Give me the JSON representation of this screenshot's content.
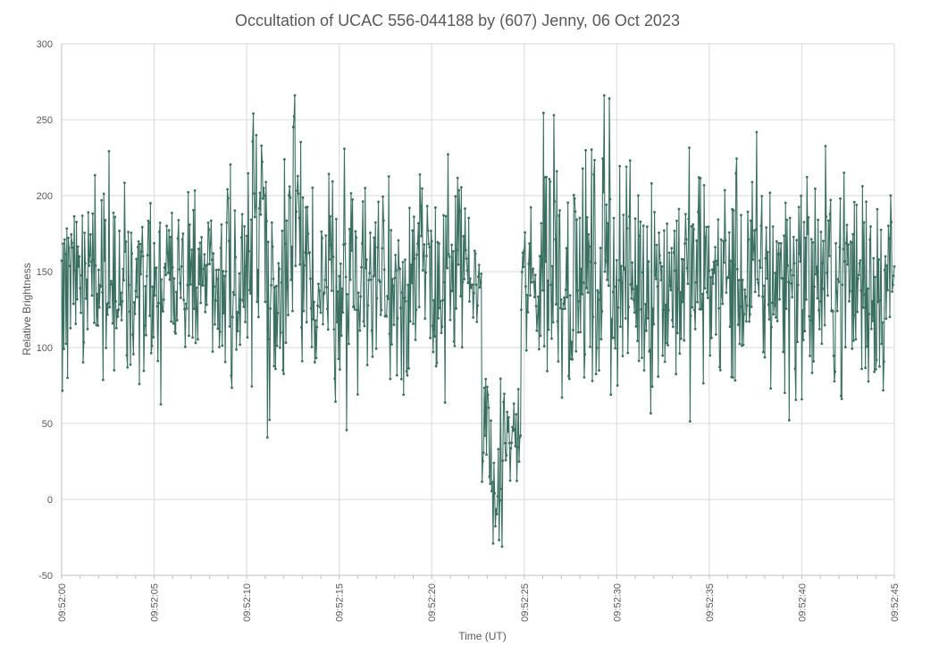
{
  "chart_data": {
    "type": "line",
    "title": "Occultation of UCAC 556-044188 by (607) Jenny, 06 Oct 2023",
    "xlabel": "Time (UT)",
    "ylabel": "Relative Brightness",
    "ylim": [
      -50,
      300
    ],
    "yticks": [
      -50,
      0,
      50,
      100,
      150,
      200,
      250,
      300
    ],
    "xlim_seconds": [
      0,
      45
    ],
    "xticks": [
      {
        "s": 0,
        "label": "09:52:00"
      },
      {
        "s": 5,
        "label": "09:52:05"
      },
      {
        "s": 10,
        "label": "09:52:10"
      },
      {
        "s": 15,
        "label": "09:52:15"
      },
      {
        "s": 20,
        "label": "09:52:20"
      },
      {
        "s": 25,
        "label": "09:52:25"
      },
      {
        "s": 30,
        "label": "09:52:30"
      },
      {
        "s": 35,
        "label": "09:52:35"
      },
      {
        "s": 40,
        "label": "09:52:40"
      },
      {
        "s": 45,
        "label": "09:52:45"
      }
    ],
    "grid": true,
    "legend": "none",
    "series_color": "#3b7060",
    "sample_interval_s": 0.04,
    "segments": [
      {
        "from_s": 0,
        "to_s": 10.3,
        "mean": 140,
        "spread": 35
      },
      {
        "from_s": 10.3,
        "to_s": 11.0,
        "mean": 185,
        "spread": 45
      },
      {
        "from_s": 11.0,
        "to_s": 12.4,
        "mean": 145,
        "spread": 40
      },
      {
        "from_s": 12.4,
        "to_s": 12.8,
        "mean": 175,
        "spread": 50
      },
      {
        "from_s": 12.8,
        "to_s": 22.0,
        "mean": 145,
        "spread": 40
      },
      {
        "from_s": 22.0,
        "to_s": 22.7,
        "mean": 140,
        "spread": 15
      },
      {
        "from_s": 22.7,
        "to_s": 23.2,
        "mean": 55,
        "spread": 25
      },
      {
        "from_s": 23.2,
        "to_s": 23.7,
        "mean": 0,
        "spread": 15
      },
      {
        "from_s": 23.7,
        "to_s": 24.8,
        "mean": 40,
        "spread": 20
      },
      {
        "from_s": 24.8,
        "to_s": 25.9,
        "mean": 140,
        "spread": 30
      },
      {
        "from_s": 25.9,
        "to_s": 27.0,
        "mean": 165,
        "spread": 50
      },
      {
        "from_s": 27.0,
        "to_s": 45.0,
        "mean": 145,
        "spread": 42
      }
    ],
    "peaks": [
      {
        "s": 10.35,
        "value": 254
      },
      {
        "s": 12.6,
        "value": 266
      },
      {
        "s": 26.6,
        "value": 253
      },
      {
        "s": 29.3,
        "value": 266
      },
      {
        "s": 29.6,
        "value": 264
      }
    ],
    "dips": [
      {
        "s": 23.3,
        "value": -29
      },
      {
        "s": 23.8,
        "value": -31
      }
    ]
  }
}
